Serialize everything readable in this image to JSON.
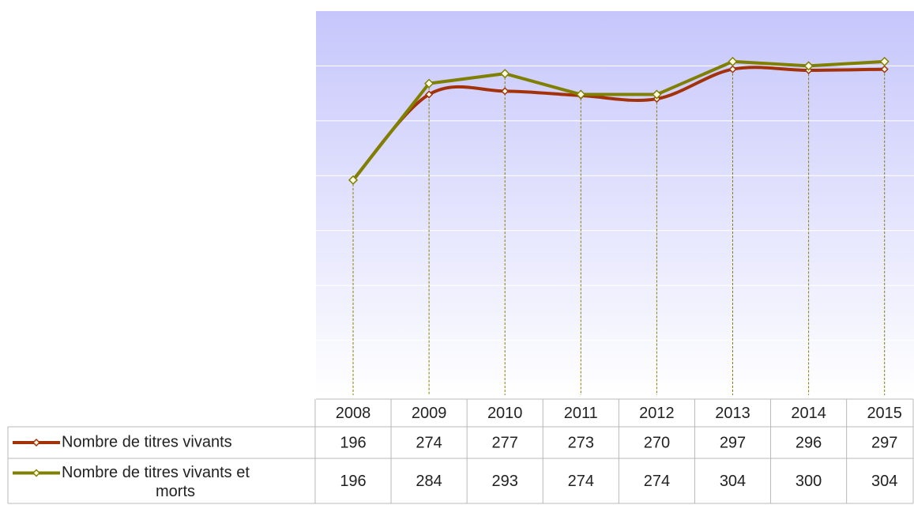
{
  "chart_data": {
    "type": "line",
    "categories": [
      "2008",
      "2009",
      "2010",
      "2011",
      "2012",
      "2013",
      "2014",
      "2015"
    ],
    "series": [
      {
        "name": "Nombre de titres vivants",
        "color": "#a3320b",
        "values": [
          196,
          274,
          277,
          273,
          270,
          297,
          296,
          297
        ]
      },
      {
        "name": "Nombre de titres vivants et morts",
        "color": "#808000",
        "values": [
          196,
          284,
          293,
          274,
          274,
          304,
          300,
          304
        ]
      }
    ],
    "ylim": [
      0,
      350
    ],
    "yticks": [
      50,
      100,
      150,
      200,
      250,
      300
    ],
    "grid": true
  }
}
